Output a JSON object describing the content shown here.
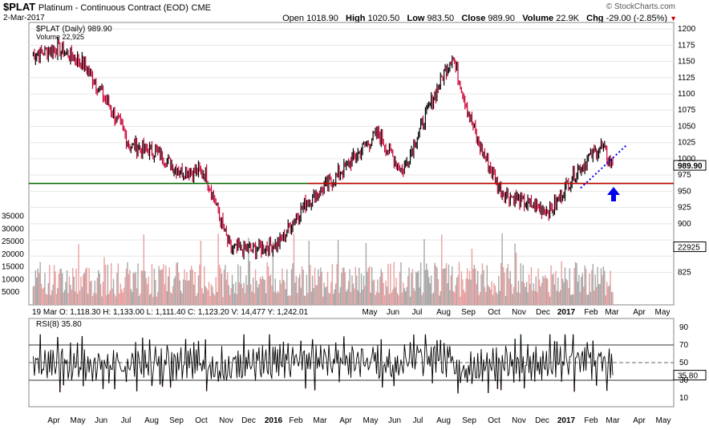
{
  "header": {
    "symbol": "$PLAT",
    "name": "Platinum - Continuous Contract (EOD)",
    "exchange": "CME",
    "date": "2-Mar-2017",
    "brand": "© StockCharts.com",
    "open_label": "Open",
    "open": "1018.90",
    "high_label": "High",
    "high": "1020.50",
    "low_label": "Low",
    "low": "983.50",
    "close_label": "Close",
    "close": "989.90",
    "volume_label": "Volume",
    "volume": "22.9K",
    "chg_label": "Chg",
    "chg": "-29.00 (-2.85%)",
    "chg_arrow": "▼"
  },
  "legend": {
    "price": "$PLAT (Daily) 989.90",
    "volume": "Volume 22,925",
    "rsi": "RSI(8) 35.80"
  },
  "hover_info": "19 Mar O: 1,118.30   H: 1,133.00   L: 1,111.40   C: 1,123.20   V: 14,477   Y: 1,242.01",
  "colors": {
    "up": "#000000",
    "down": "#cc0033",
    "vol_up": "#a8a8a8",
    "vol_down": "#e8a0a0",
    "support_green": "#006600",
    "support_red": "#cc0000",
    "trend_blue": "#0000ee",
    "rsi_overbought": "#5a8a5a",
    "rsi_oversold": "#8a4444"
  },
  "chart_data": [
    {
      "type": "line",
      "title": "$PLAT (Daily) 989.90",
      "y_axis_side": "right",
      "ylim": [
        775,
        1210
      ],
      "y_ticks": [
        825,
        850,
        875,
        900,
        925,
        950,
        975,
        1000,
        1025,
        1050,
        1075,
        1100,
        1125,
        1150,
        1175,
        1200
      ],
      "y_tick_labels_shown": [
        825,
        900,
        925,
        950,
        975,
        1000,
        1025,
        1050,
        1075,
        1100,
        1125,
        1150,
        1175,
        1200
      ],
      "x_labels_price": [
        "May",
        "Jun",
        "Jul",
        "Aug",
        "Sep",
        "Oct",
        "Nov",
        "Dec",
        "2017",
        "Feb",
        "Mar",
        "Apr",
        "May"
      ],
      "x_labels_bottom": [
        "Apr",
        "May",
        "Jun",
        "Jul",
        "Aug",
        "Sep",
        "Oct",
        "Nov",
        "Dec",
        "2016",
        "Feb",
        "Mar",
        "Apr",
        "May",
        "Jun",
        "Jul",
        "Aug",
        "Sep",
        "Oct",
        "Nov",
        "Dec",
        "2017",
        "Feb",
        "Mar",
        "Apr",
        "May"
      ],
      "x_dates": [
        "2015-03-15",
        "2015-04-15",
        "2015-05-15",
        "2015-06-15",
        "2015-07-15",
        "2015-08-15",
        "2015-09-15",
        "2015-10-15",
        "2015-11-15",
        "2015-12-15",
        "2016-01-15",
        "2016-02-15",
        "2016-03-15",
        "2016-04-15",
        "2016-05-15",
        "2016-06-15",
        "2016-07-15",
        "2016-08-15",
        "2016-09-15",
        "2016-10-15",
        "2016-11-15",
        "2016-12-15",
        "2017-01-15",
        "2017-02-15",
        "2017-03-02"
      ],
      "close_approx": [
        1160,
        1170,
        1150,
        1090,
        1020,
        1010,
        980,
        980,
        860,
        860,
        870,
        930,
        960,
        1000,
        1040,
        980,
        1070,
        1160,
        1030,
        950,
        930,
        920,
        980,
        1020,
        990
      ],
      "horizontal_lines": [
        {
          "name": "support-green",
          "value": 962
        },
        {
          "name": "support-red",
          "value": 962
        }
      ],
      "last_price_label": "989.90"
    },
    {
      "type": "bar",
      "title": "Volume 22,925",
      "y_axis_side": "left",
      "ylim": [
        0,
        38000
      ],
      "y_ticks": [
        5000,
        10000,
        15000,
        20000,
        25000,
        30000,
        35000
      ],
      "last_volume_label": "22925"
    },
    {
      "type": "line",
      "title": "RSI(8) 35.80",
      "y_axis_side": "right",
      "ylim": [
        0,
        100
      ],
      "y_ticks": [
        10,
        30,
        50,
        70,
        90
      ],
      "reference_lines": [
        30,
        50,
        70
      ],
      "last_value_label": "35.80"
    }
  ]
}
